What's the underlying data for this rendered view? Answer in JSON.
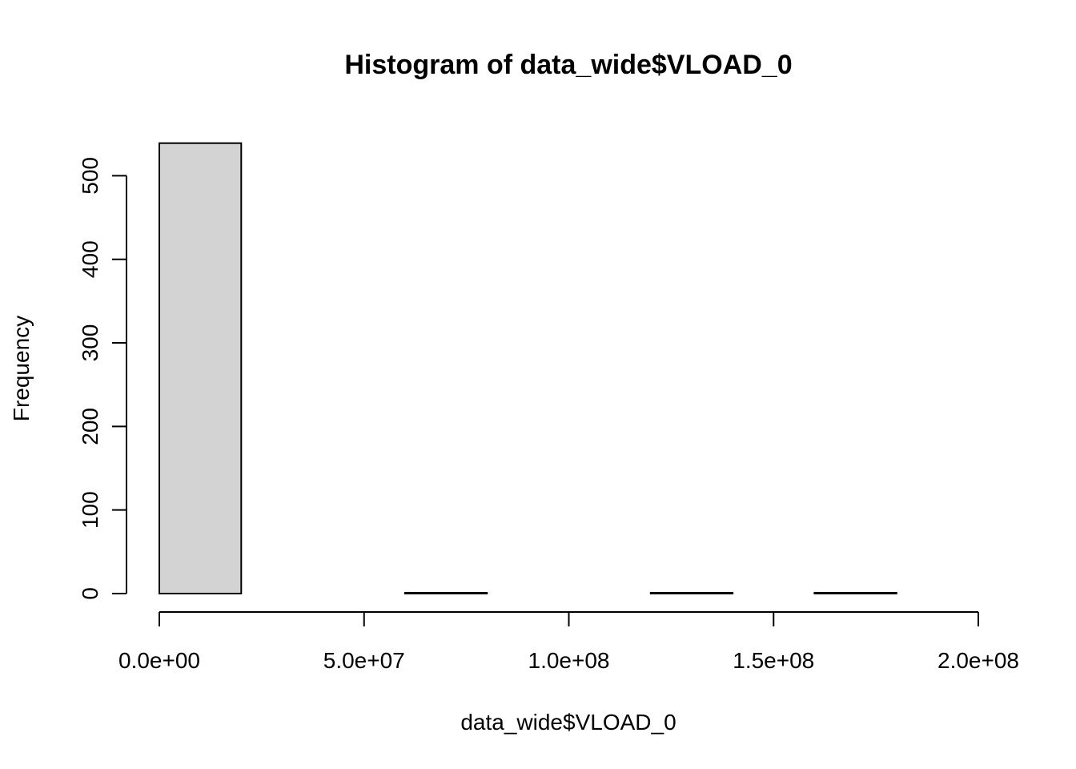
{
  "chart_data": {
    "type": "bar",
    "title": "Histogram of data_wide$VLOAD_0",
    "xlabel": "data_wide$VLOAD_0",
    "ylabel": "Frequency",
    "bar_fill": "#d3d3d3",
    "bar_stroke": "#000000",
    "bin_edges": [
      0,
      20000000,
      40000000,
      60000000,
      80000000,
      100000000,
      120000000,
      140000000,
      160000000,
      180000000,
      200000000
    ],
    "values": [
      539,
      0,
      0,
      1,
      0,
      0,
      1,
      0,
      1,
      0
    ],
    "xlim": [
      0,
      200000000
    ],
    "ylim": [
      0,
      539
    ],
    "x_ticks": [
      {
        "value": 0,
        "label": "0.0e+00"
      },
      {
        "value": 50000000,
        "label": "5.0e+07"
      },
      {
        "value": 100000000,
        "label": "1.0e+08"
      },
      {
        "value": 150000000,
        "label": "1.5e+08"
      },
      {
        "value": 200000000,
        "label": "2.0e+08"
      }
    ],
    "y_ticks": [
      {
        "value": 0,
        "label": "0"
      },
      {
        "value": 100,
        "label": "100"
      },
      {
        "value": 200,
        "label": "200"
      },
      {
        "value": 300,
        "label": "300"
      },
      {
        "value": 400,
        "label": "400"
      },
      {
        "value": 500,
        "label": "500"
      }
    ],
    "grid": false,
    "legend": "none"
  }
}
